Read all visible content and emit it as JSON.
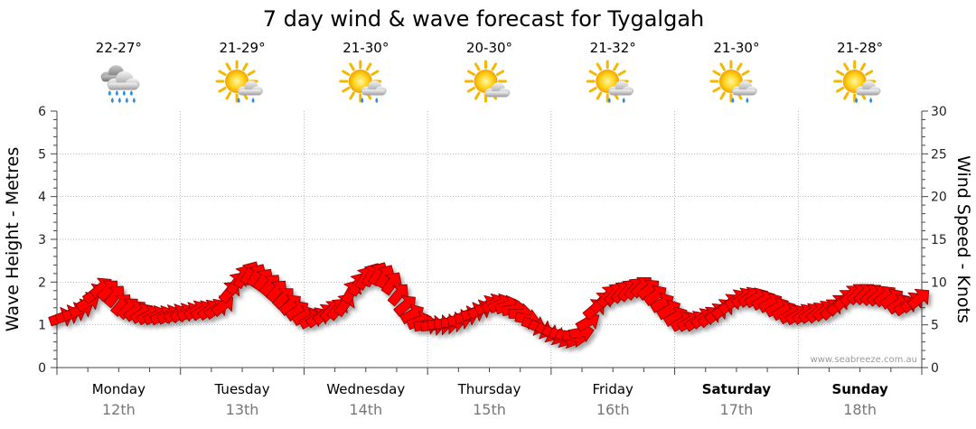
{
  "chart_data": {
    "type": "scatter",
    "title": "7 day wind & wave forecast for Tygalgah",
    "left_axis_label": "Wave Height - Metres",
    "right_axis_label": "Wind Speed - Knots",
    "left_ticks": [
      "0",
      "1",
      "2",
      "3",
      "4",
      "5",
      "6"
    ],
    "right_ticks": [
      "0",
      "5",
      "10",
      "15",
      "20",
      "25",
      "30"
    ],
    "left_range": [
      0,
      6
    ],
    "right_range": [
      0,
      30
    ],
    "watermark": "www.seabreeze.com.au",
    "grid": "dotted",
    "days": [
      {
        "name": "Monday",
        "date": "12th",
        "temp": "22-27°",
        "weather_icon": "rain-cloud-icon",
        "bold": false
      },
      {
        "name": "Tuesday",
        "date": "13th",
        "temp": "21-29°",
        "weather_icon": "sun-shower-icon",
        "bold": false
      },
      {
        "name": "Wednesday",
        "date": "14th",
        "temp": "21-30°",
        "weather_icon": "sun-shower-icon",
        "bold": false
      },
      {
        "name": "Thursday",
        "date": "15th",
        "temp": "20-30°",
        "weather_icon": "partly-cloudy-icon",
        "bold": false
      },
      {
        "name": "Friday",
        "date": "16th",
        "temp": "21-32°",
        "weather_icon": "sun-shower-icon",
        "bold": false
      },
      {
        "name": "Saturday",
        "date": "17th",
        "temp": "21-30°",
        "weather_icon": "sun-shower-icon",
        "bold": true
      },
      {
        "name": "Sunday",
        "date": "18th",
        "temp": "21-28°",
        "weather_icon": "sun-shower-icon",
        "bold": true
      }
    ],
    "series": {
      "wind_arrow_color": "#ff0000",
      "wind_knots": [
        5.8,
        6.1,
        6.4,
        6.8,
        7.6,
        8.6,
        9.3,
        9.0,
        8.3,
        7.3,
        6.9,
        6.6,
        6.3,
        6.1,
        6.0,
        6.0,
        6.1,
        6.2,
        6.3,
        6.4,
        6.6,
        6.6,
        6.7,
        6.8,
        7.2,
        8.8,
        9.8,
        10.6,
        11.0,
        10.7,
        10.2,
        9.6,
        8.9,
        8.1,
        7.3,
        6.6,
        6.0,
        5.6,
        5.8,
        6.2,
        6.6,
        6.8,
        7.3,
        8.8,
        9.7,
        10.4,
        10.8,
        10.9,
        10.6,
        9.8,
        8.5,
        7.2,
        6.2,
        5.4,
        5.0,
        4.9,
        5.0,
        5.1,
        5.3,
        5.6,
        6.0,
        6.4,
        6.7,
        7.2,
        7.4,
        7.4,
        7.2,
        6.8,
        6.3,
        5.7,
        5.0,
        4.6,
        4.2,
        3.9,
        3.6,
        3.5,
        3.6,
        4.1,
        5.3,
        6.8,
        7.6,
        8.3,
        8.6,
        8.8,
        9.0,
        9.2,
        9.4,
        9.1,
        8.4,
        7.5,
        6.7,
        5.9,
        5.3,
        5.3,
        5.4,
        5.7,
        5.9,
        6.3,
        6.8,
        7.4,
        7.9,
        8.1,
        8.2,
        8.1,
        7.8,
        7.5,
        7.0,
        6.6,
        6.2,
        6.1,
        6.2,
        6.3,
        6.4,
        6.6,
        6.8,
        7.3,
        7.9,
        8.4,
        8.6,
        8.6,
        8.5,
        8.4,
        8.3,
        8.0,
        7.4,
        7.2,
        7.6,
        8.0
      ],
      "wind_direction_deg": [
        70,
        70,
        68,
        65,
        60,
        55,
        50,
        45,
        40,
        40,
        45,
        50,
        55,
        60,
        65,
        65,
        65,
        65,
        65,
        65,
        60,
        60,
        55,
        55,
        50,
        40,
        35,
        30,
        30,
        30,
        35,
        40,
        40,
        45,
        50,
        55,
        60,
        60,
        55,
        50,
        45,
        40,
        35,
        30,
        30,
        30,
        30,
        30,
        30,
        35,
        40,
        50,
        60,
        70,
        80,
        85,
        90,
        90,
        85,
        80,
        75,
        70,
        65,
        60,
        60,
        65,
        70,
        80,
        90,
        100,
        110,
        115,
        120,
        120,
        120,
        115,
        100,
        80,
        60,
        50,
        45,
        40,
        40,
        40,
        40,
        40,
        45,
        50,
        55,
        60,
        60,
        60,
        60,
        60,
        55,
        55,
        50,
        50,
        50,
        50,
        55,
        55,
        55,
        60,
        60,
        60,
        60,
        60,
        60,
        60,
        55,
        55,
        50,
        50,
        45,
        45,
        45,
        45,
        45,
        45,
        45,
        50,
        50,
        55,
        55,
        55,
        50,
        50
      ]
    }
  }
}
